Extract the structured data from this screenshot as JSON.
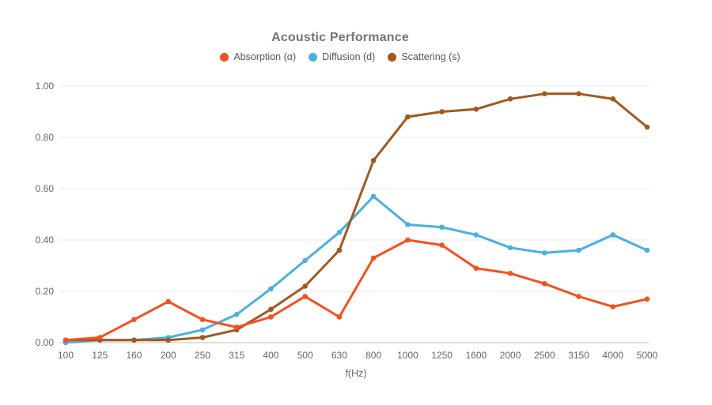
{
  "title": "Acoustic Performance",
  "x_axis_title": "f(Hz)",
  "colors": {
    "absorption": "#f4511e",
    "diffusion": "#4cafe0",
    "scattering": "#a05a1e",
    "title_text": "#757575",
    "legend_text": "#555555",
    "tick_text": "#666666",
    "gridline": "#e8e8e8",
    "axis_line": "#c9c9c9",
    "background": "#ffffff"
  },
  "chart_data": {
    "type": "line",
    "title": "Acoustic Performance",
    "xlabel": "f(Hz)",
    "ylabel": "",
    "x_categories": [
      "100",
      "125",
      "160",
      "200",
      "250",
      "315",
      "400",
      "500",
      "630",
      "800",
      "1000",
      "1250",
      "1600",
      "2000",
      "2500",
      "3150",
      "4000",
      "5000"
    ],
    "ylim": [
      0,
      1.0
    ],
    "yticks": [
      0.0,
      0.2,
      0.4,
      0.6,
      0.8,
      1.0
    ],
    "ytick_labels": [
      "0.00",
      "0.20",
      "0.40",
      "0.60",
      "0.80",
      "1.00"
    ],
    "grid": "horizontal",
    "legend_position": "top",
    "marker": "circle",
    "series": [
      {
        "name": "Absorption (α)",
        "id": "absorption",
        "color": "#f4511e",
        "values": [
          0.01,
          0.02,
          0.09,
          0.16,
          0.09,
          0.06,
          0.1,
          0.18,
          0.1,
          0.33,
          0.4,
          0.38,
          0.29,
          0.27,
          0.23,
          0.18,
          0.14,
          0.17
        ]
      },
      {
        "name": "Diffusion (d)",
        "id": "diffusion",
        "color": "#4cafe0",
        "values": [
          0.0,
          0.01,
          0.01,
          0.02,
          0.05,
          0.11,
          0.21,
          0.32,
          0.43,
          0.57,
          0.46,
          0.45,
          0.42,
          0.37,
          0.35,
          0.36,
          0.42,
          0.36
        ]
      },
      {
        "name": "Scattering (s)",
        "id": "scattering",
        "color": "#a05a1e",
        "values": [
          0.01,
          0.01,
          0.01,
          0.01,
          0.02,
          0.05,
          0.13,
          0.22,
          0.36,
          0.71,
          0.88,
          0.9,
          0.91,
          0.95,
          0.97,
          0.97,
          0.95,
          0.84
        ]
      }
    ],
    "z_order": [
      "diffusion",
      "scattering",
      "absorption"
    ]
  }
}
